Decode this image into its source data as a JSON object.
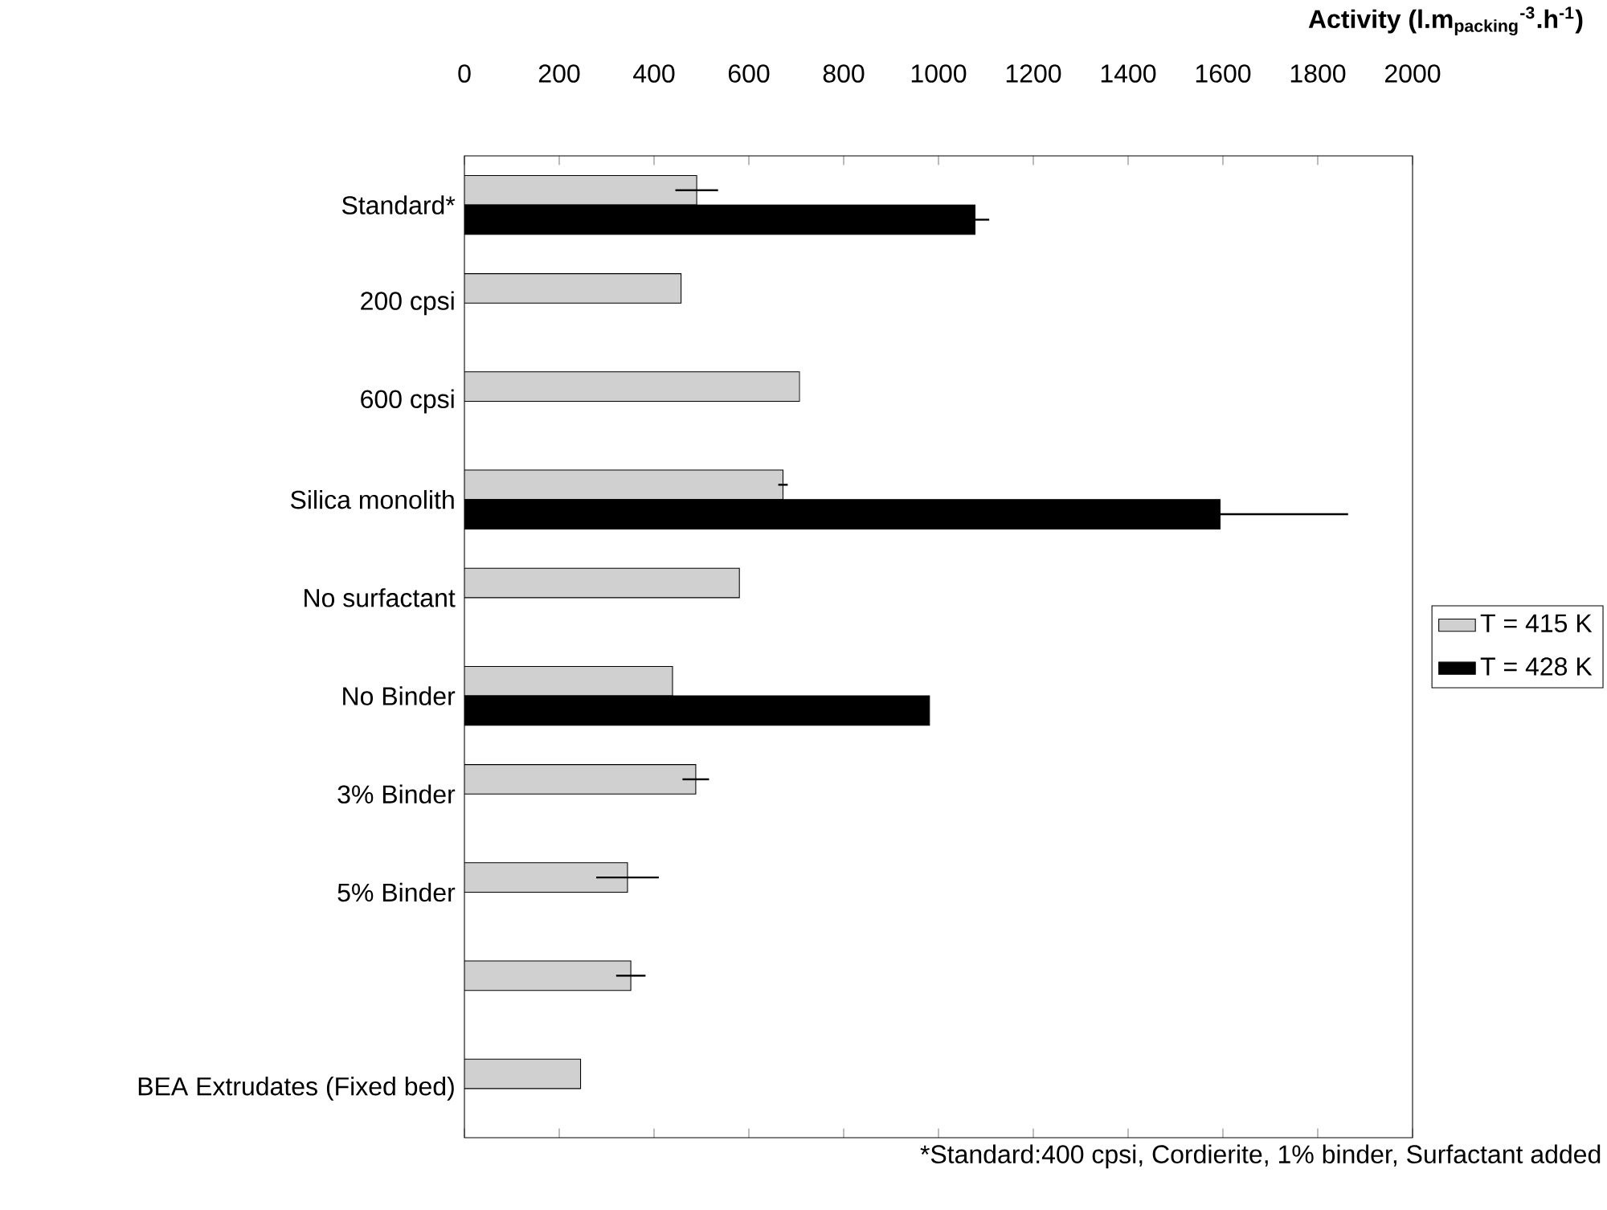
{
  "chart_data": {
    "type": "bar",
    "orientation": "horizontal",
    "xlabel": "Activity (l.m$_{packing}$$^{-3}$.h$^{-1}$)",
    "categories": [
      "Standard*",
      "200 cpsi",
      "600 cpsi",
      "Silica monolith",
      "No surfactant",
      "No Binder",
      "3% Binder",
      "5% Binder",
      null,
      "BEA Extrudates (Fixed bed)"
    ],
    "series": [
      {
        "name": "T = 415 K",
        "color": "#d0d0d0",
        "values": [
          490,
          457,
          707,
          672,
          580,
          439,
          488,
          344,
          351,
          245
        ],
        "errors": [
          45,
          null,
          null,
          10,
          null,
          null,
          28,
          66,
          31,
          null
        ]
      },
      {
        "name": "T = 428 K",
        "color": "#000000",
        "values": [
          1077,
          null,
          null,
          1594,
          null,
          981,
          null,
          null,
          null,
          null
        ],
        "errors": [
          30,
          null,
          null,
          270,
          null,
          null,
          null,
          null,
          null,
          null
        ]
      }
    ],
    "xlim": [
      0,
      2000
    ],
    "xticks": [
      0,
      200,
      400,
      600,
      800,
      1000,
      1200,
      1400,
      1600,
      1800,
      2000
    ],
    "grid": false,
    "legend": "right",
    "annotations": [
      "*Standard:400 cpsi, Cordierite, 1% binder, Surfactant added"
    ]
  }
}
